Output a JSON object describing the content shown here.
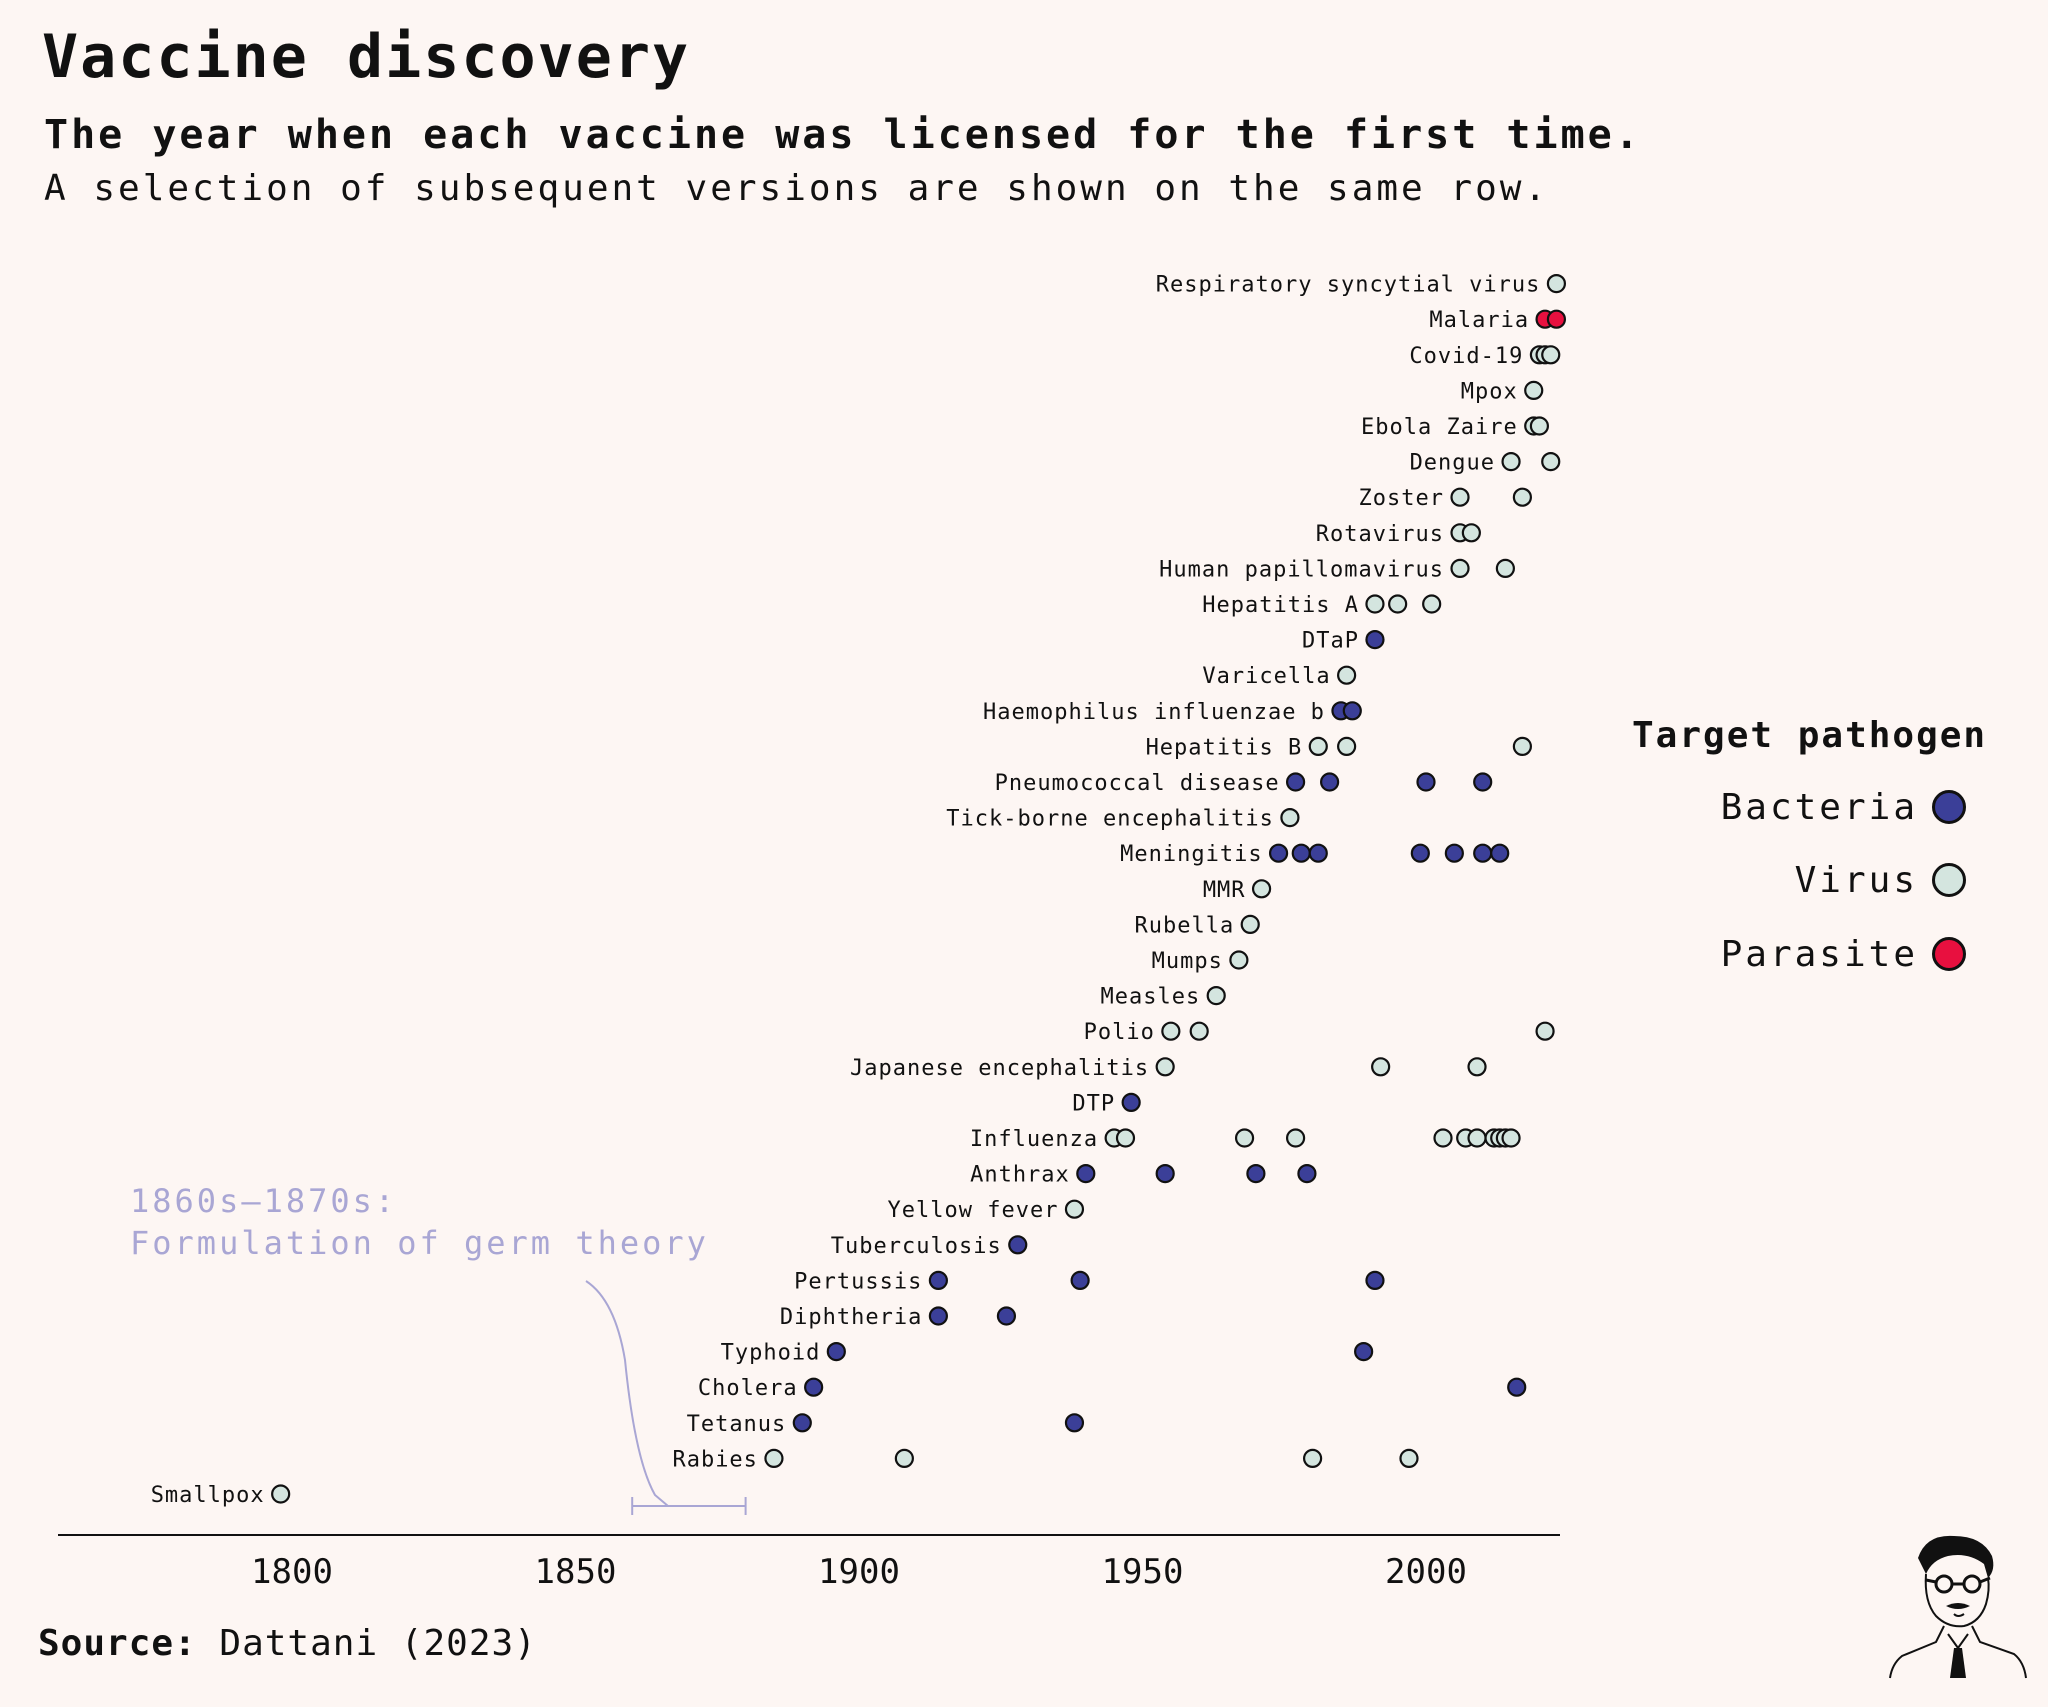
{
  "header": {
    "title": "Vaccine discovery",
    "subtitle": "The year when each vaccine was licensed for the first time.",
    "note": "A selection of subsequent versions are shown on the same row."
  },
  "source": {
    "label": "Source:",
    "text": "Dattani (2023)"
  },
  "annotation": {
    "line1": "1860s–1870s:",
    "line2": "Formulation of germ theory",
    "range": [
      1860,
      1880
    ]
  },
  "legend": {
    "title": "Target pathogen",
    "items": [
      {
        "label": "Bacteria",
        "color": "#3b3f98"
      },
      {
        "label": "Virus",
        "color": "#d4e5df"
      },
      {
        "label": "Parasite",
        "color": "#e8103f"
      }
    ]
  },
  "colors": {
    "Bacteria": "#3b3f98",
    "Virus": "#d4e5df",
    "Parasite": "#e8103f",
    "annotation": "#a9a6d4",
    "background": "#fdf6f3"
  },
  "chart_data": {
    "type": "scatter",
    "x_ticks": [
      1800,
      1850,
      1900,
      1950,
      2000
    ],
    "xlim": [
      1758,
      2023
    ],
    "grid": false,
    "legend_position": "right",
    "rows": [
      {
        "name": "Smallpox",
        "type": "Virus",
        "years": [
          1798
        ]
      },
      {
        "name": "Rabies",
        "type": "Virus",
        "years": [
          1885,
          1908,
          1980,
          1997
        ]
      },
      {
        "name": "Tetanus",
        "type": "Bacteria",
        "years": [
          1890,
          1938
        ]
      },
      {
        "name": "Cholera",
        "type": "Bacteria",
        "years": [
          1892,
          2016
        ]
      },
      {
        "name": "Typhoid",
        "type": "Bacteria",
        "years": [
          1896,
          1989
        ]
      },
      {
        "name": "Diphtheria",
        "type": "Bacteria",
        "years": [
          1914,
          1926
        ]
      },
      {
        "name": "Pertussis",
        "type": "Bacteria",
        "years": [
          1914,
          1939,
          1991
        ]
      },
      {
        "name": "Tuberculosis",
        "type": "Bacteria",
        "years": [
          1928
        ]
      },
      {
        "name": "Yellow fever",
        "type": "Virus",
        "years": [
          1938
        ]
      },
      {
        "name": "Anthrax",
        "type": "Bacteria",
        "years": [
          1940,
          1954,
          1970,
          1979
        ]
      },
      {
        "name": "Influenza",
        "type": "Virus",
        "years": [
          1945,
          1947,
          1968,
          1977,
          2003,
          2007,
          2009,
          2012,
          2013,
          2014,
          2015
        ]
      },
      {
        "name": "DTP",
        "type": "Bacteria",
        "years": [
          1948
        ]
      },
      {
        "name": "Japanese encephalitis",
        "type": "Virus",
        "years": [
          1954,
          1992,
          2009
        ]
      },
      {
        "name": "Polio",
        "type": "Virus",
        "years": [
          1955,
          1960,
          2021
        ]
      },
      {
        "name": "Measles",
        "type": "Virus",
        "years": [
          1963
        ]
      },
      {
        "name": "Mumps",
        "type": "Virus",
        "years": [
          1967
        ]
      },
      {
        "name": "Rubella",
        "type": "Virus",
        "years": [
          1969
        ]
      },
      {
        "name": "MMR",
        "type": "Virus",
        "years": [
          1971
        ]
      },
      {
        "name": "Meningitis",
        "type": "Bacteria",
        "years": [
          1974,
          1978,
          1981,
          1999,
          2005,
          2010,
          2013
        ]
      },
      {
        "name": "Tick-borne encephalitis",
        "type": "Virus",
        "years": [
          1976
        ]
      },
      {
        "name": "Pneumococcal disease",
        "type": "Bacteria",
        "years": [
          1977,
          1983,
          2000,
          2010
        ]
      },
      {
        "name": "Hepatitis B",
        "type": "Virus",
        "years": [
          1981,
          1986,
          2017
        ]
      },
      {
        "name": "Haemophilus influenzae b",
        "type": "Bacteria",
        "years": [
          1985,
          1987
        ]
      },
      {
        "name": "Varicella",
        "type": "Virus",
        "years": [
          1986
        ]
      },
      {
        "name": "DTaP",
        "type": "Bacteria",
        "years": [
          1991
        ]
      },
      {
        "name": "Hepatitis A",
        "type": "Virus",
        "years": [
          1991,
          1995,
          2001
        ]
      },
      {
        "name": "Human papillomavirus",
        "type": "Virus",
        "years": [
          2006,
          2014
        ]
      },
      {
        "name": "Rotavirus",
        "type": "Virus",
        "years": [
          2006,
          2008
        ]
      },
      {
        "name": "Zoster",
        "type": "Virus",
        "years": [
          2006,
          2017
        ]
      },
      {
        "name": "Dengue",
        "type": "Virus",
        "years": [
          2015,
          2022
        ]
      },
      {
        "name": "Ebola Zaire",
        "type": "Virus",
        "years": [
          2019,
          2020
        ]
      },
      {
        "name": "Mpox",
        "type": "Virus",
        "years": [
          2019
        ]
      },
      {
        "name": "Covid-19",
        "type": "Virus",
        "years": [
          2020,
          2021,
          2022
        ]
      },
      {
        "name": "Malaria",
        "type": "Parasite",
        "years": [
          2021,
          2023
        ]
      },
      {
        "name": "Respiratory syncytial virus",
        "type": "Virus",
        "years": [
          2023
        ]
      }
    ]
  }
}
